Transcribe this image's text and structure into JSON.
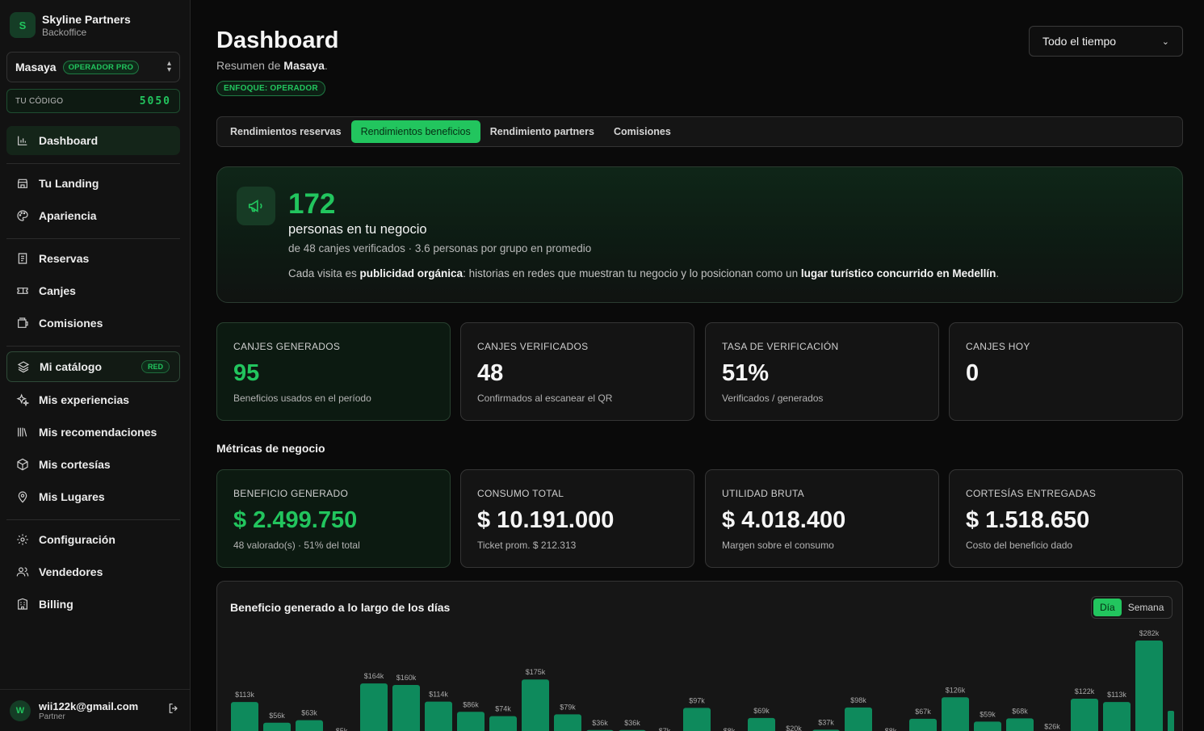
{
  "brand": {
    "logo_letter": "S",
    "name": "Skyline Partners",
    "sub": "Backoffice"
  },
  "org": {
    "name": "Masaya",
    "badge": "OPERADOR PRO"
  },
  "code": {
    "label": "TU CÓDIGO",
    "value": "5050"
  },
  "nav": {
    "dashboard": "Dashboard",
    "landing": "Tu Landing",
    "appearance": "Apariencia",
    "bookings": "Reservas",
    "redemptions": "Canjes",
    "commissions": "Comisiones",
    "catalog": "Mi catálogo",
    "catalog_badge": "RED",
    "experiences": "Mis experiencias",
    "recommendations": "Mis recomendaciones",
    "courtesies": "Mis cortesías",
    "places": "Mis Lugares",
    "settings": "Configuración",
    "sellers": "Vendedores",
    "billing": "Billing"
  },
  "user": {
    "avatar_letter": "W",
    "email": "wii122k@gmail.com",
    "role": "Partner"
  },
  "header": {
    "title": "Dashboard",
    "subtitle_prefix": "Resumen de ",
    "subtitle_name": "Masaya",
    "subtitle_suffix": ".",
    "focus_badge": "ENFOQUE: OPERADOR",
    "time_filter": "Todo el tiempo"
  },
  "tabs": [
    "Rendimientos reservas",
    "Rendimientos beneficios",
    "Rendimiento partners",
    "Comisiones"
  ],
  "hero": {
    "number": "172",
    "title": "personas en tu negocio",
    "sub": "de 48 canjes verificados · 3.6 personas por grupo en promedio",
    "desc_1": "Cada visita es ",
    "desc_b1": "publicidad orgánica",
    "desc_2": ": historias en redes que muestran tu negocio y lo posicionan como un ",
    "desc_b2": "lugar turístico concurrido en Medellín",
    "desc_3": "."
  },
  "kpis": [
    {
      "label": "CANJES GENERADOS",
      "value": "95",
      "foot": "Beneficios usados en el período"
    },
    {
      "label": "CANJES VERIFICADOS",
      "value": "48",
      "foot": "Confirmados al escanear el QR"
    },
    {
      "label": "TASA DE VERIFICACIÓN",
      "value": "51%",
      "foot": "Verificados / generados"
    },
    {
      "label": "CANJES HOY",
      "value": "0",
      "foot": ""
    }
  ],
  "metrics_title": "Métricas de negocio",
  "metrics": [
    {
      "label": "BENEFICIO GENERADO",
      "value": "$ 2.499.750",
      "foot": "48 valorado(s) · 51% del total"
    },
    {
      "label": "CONSUMO TOTAL",
      "value": "$ 10.191.000",
      "foot": "Ticket prom. $ 212.313"
    },
    {
      "label": "UTILIDAD BRUTA",
      "value": "$ 4.018.400",
      "foot": "Margen sobre el consumo"
    },
    {
      "label": "CORTESÍAS ENTREGADAS",
      "value": "$ 1.518.650",
      "foot": "Costo del beneficio dado"
    }
  ],
  "chart": {
    "title": "Beneficio generado a lo largo de los días",
    "toggle": [
      "Día",
      "Semana"
    ]
  },
  "colors": {
    "accent": "#22c55e",
    "bar": "#0e8a5c"
  },
  "chart_data": {
    "type": "bar",
    "values": [
      113,
      56,
      63,
      5,
      164,
      160,
      114,
      86,
      74,
      175,
      79,
      36,
      36,
      7,
      97,
      8,
      69,
      20,
      37,
      98,
      8,
      67,
      126,
      59,
      68,
      26,
      122,
      113,
      282
    ],
    "labels": [
      "$113k",
      "$56k",
      "$63k",
      "$5k",
      "$164k",
      "$160k",
      "$114k",
      "$86k",
      "$74k",
      "$175k",
      "$79k",
      "$36k",
      "$36k",
      "$7k",
      "$97k",
      "$8k",
      "$69k",
      "$20k",
      "$37k",
      "$98k",
      "$8k",
      "$67k",
      "$126k",
      "$59k",
      "$68k",
      "$26k",
      "$122k",
      "$113k",
      "$282k"
    ]
  }
}
